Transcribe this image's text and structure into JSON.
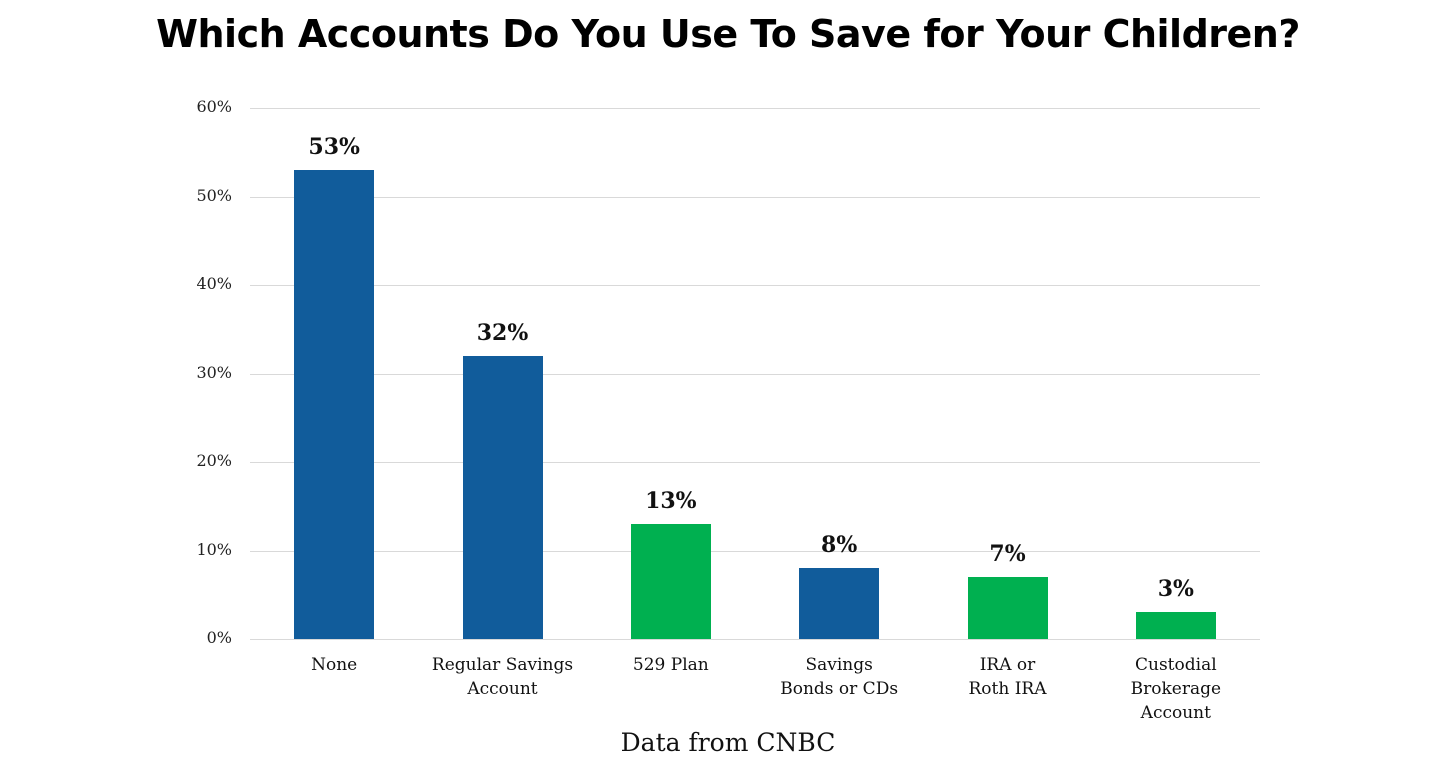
{
  "chart_data": {
    "type": "bar",
    "title": "Which Accounts Do You Use To Save for Your Children?",
    "subtitle": "",
    "xlabel": "",
    "ylabel": "",
    "source": "Data from CNBC",
    "ylim": [
      0,
      60
    ],
    "yticks": [
      "0%",
      "10%",
      "20%",
      "30%",
      "40%",
      "50%",
      "60%"
    ],
    "grid": true,
    "legend": null,
    "categories": [
      "None",
      "Regular Savings Account",
      "529 Plan",
      "Savings Bonds or CDs",
      "IRA or Roth IRA",
      "Custodial Brokerage Account"
    ],
    "category_labels": [
      "None",
      "Regular Savings\nAccount",
      "529 Plan",
      "Savings\nBonds or CDs",
      "IRA or\nRoth IRA",
      "Custodial\nBrokerage\nAccount"
    ],
    "values": [
      53,
      32,
      13,
      8,
      7,
      3
    ],
    "value_labels": [
      "53%",
      "32%",
      "13%",
      "8%",
      "7%",
      "3%"
    ],
    "bar_colors": [
      "#115c9b",
      "#115c9b",
      "#00b050",
      "#115c9b",
      "#00b050",
      "#00b050"
    ]
  },
  "colors": {
    "blue": "#115c9b",
    "green": "#00b050",
    "grid": "#d9d9d9"
  }
}
